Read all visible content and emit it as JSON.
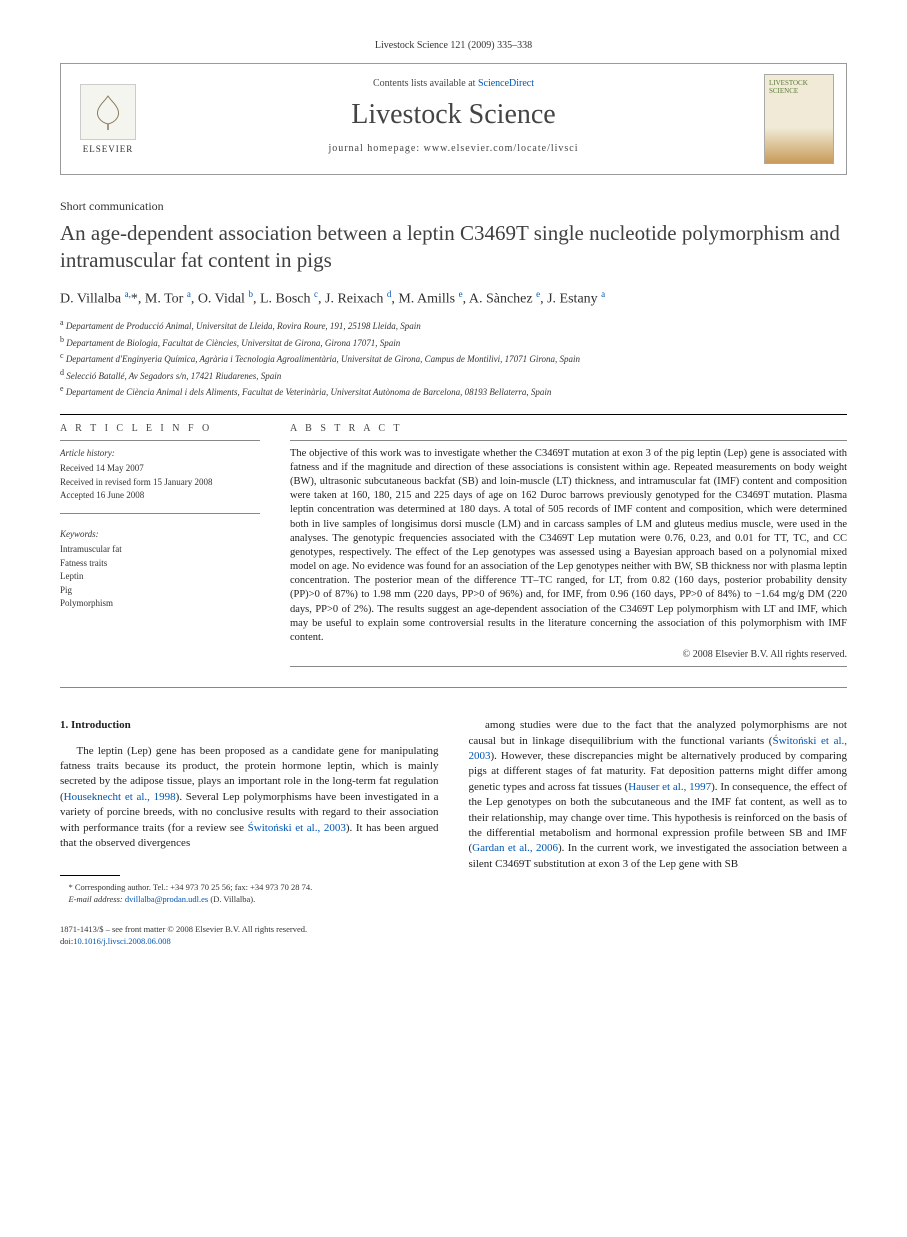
{
  "journal_ref": "Livestock Science 121 (2009) 335–338",
  "header": {
    "contents_prefix": "Contents lists available at ",
    "contents_link": "ScienceDirect",
    "journal_title": "Livestock Science",
    "homepage_prefix": "journal homepage: ",
    "homepage_url": "www.elsevier.com/locate/livsci",
    "publisher": "ELSEVIER",
    "cover_label": "LIVESTOCK SCIENCE"
  },
  "article": {
    "type": "Short communication",
    "title": "An age-dependent association between a leptin C3469T single nucleotide polymorphism and intramuscular fat content in pigs",
    "authors_html": "D. Villalba <sup>a,</sup>*, M. Tor <sup>a</sup>, O. Vidal <sup>b</sup>, L. Bosch <sup>c</sup>, J. Reixach <sup>d</sup>, M. Amills <sup>e</sup>, A. Sànchez <sup>e</sup>, J. Estany <sup>a</sup>",
    "affiliations": [
      {
        "sup": "a",
        "text": "Departament de Producció Animal, Universitat de Lleida, Rovira Roure, 191, 25198 Lleida, Spain"
      },
      {
        "sup": "b",
        "text": "Departament de Biologia, Facultat de Ciències, Universitat de Girona, Girona 17071, Spain"
      },
      {
        "sup": "c",
        "text": "Departament d'Enginyeria Química, Agrària i Tecnologia Agroalimentària, Universitat de Girona, Campus de Montilivi, 17071 Girona, Spain"
      },
      {
        "sup": "d",
        "text": "Selecció Batallé, Av Segadors s/n, 17421 Riudarenes, Spain"
      },
      {
        "sup": "e",
        "text": "Departament de Ciència Animal i dels Aliments, Facultat de Veterinària, Universitat Autònoma de Barcelona, 08193 Bellaterra, Spain"
      }
    ]
  },
  "info": {
    "label": "A R T I C L E   I N F O",
    "history_heading": "Article history:",
    "received": "Received 14 May 2007",
    "revised": "Received in revised form 15 January 2008",
    "accepted": "Accepted 16 June 2008",
    "keywords_heading": "Keywords:",
    "keywords": [
      "Intramuscular fat",
      "Fatness traits",
      "Leptin",
      "Pig",
      "Polymorphism"
    ]
  },
  "abstract": {
    "label": "A B S T R A C T",
    "text": "The objective of this work was to investigate whether the C3469T mutation at exon 3 of the pig leptin (Lep) gene is associated with fatness and if the magnitude and direction of these associations is consistent within age. Repeated measurements on body weight (BW), ultrasonic subcutaneous backfat (SB) and loin-muscle (LT) thickness, and intramuscular fat (IMF) content and composition were taken at 160, 180, 215 and 225 days of age on 162 Duroc barrows previously genotyped for the C3469T mutation. Plasma leptin concentration was determined at 180 days. A total of 505 records of IMF content and composition, which were determined both in live samples of longisimus dorsi muscle (LM) and in carcass samples of LM and gluteus medius muscle, were used in the analyses. The genotypic frequencies associated with the C3469T Lep mutation were 0.76, 0.23, and 0.01 for TT, TC, and CC genotypes, respectively. The effect of the Lep genotypes was assessed using a Bayesian approach based on a polynomial mixed model on age. No evidence was found for an association of the Lep genotypes neither with BW, SB thickness nor with plasma leptin concentration. The posterior mean of the difference TT–TC ranged, for LT, from 0.82 (160 days, posterior probability density (PP)>0 of 87%) to 1.98 mm (220 days, PP>0 of 96%) and, for IMF, from 0.96 (160 days, PP>0 of 84%) to −1.64 mg/g DM (220 days, PP>0 of 2%). The results suggest an age-dependent association of the C3469T Lep polymorphism with LT and IMF, which may be useful to explain some controversial results in the literature concerning the association of this polymorphism with IMF content.",
    "copyright": "© 2008 Elsevier B.V. All rights reserved."
  },
  "body": {
    "section_heading": "1. Introduction",
    "col1_para": "The leptin (Lep) gene has been proposed as a candidate gene for manipulating fatness traits because its product, the protein hormone leptin, which is mainly secreted by the adipose tissue, plays an important role in the long-term fat regulation (Houseknecht et al., 1998). Several Lep polymorphisms have been investigated in a variety of porcine breeds, with no conclusive results with regard to their association with performance traits (for a review see Świtoński et al., 2003). It has been argued that the observed divergences",
    "col1_link1": "Houseknecht et al., 1998",
    "col1_link2": "Świtoński et al., 2003",
    "col2_para": "among studies were due to the fact that the analyzed polymorphisms are not causal but in linkage disequilibrium with the functional variants (Świtoński et al., 2003). However, these discrepancies might be alternatively produced by comparing pigs at different stages of fat maturity. Fat deposition patterns might differ among genetic types and across fat tissues (Hauser et al., 1997). In consequence, the effect of the Lep genotypes on both the subcutaneous and the IMF fat content, as well as to their relationship, may change over time. This hypothesis is reinforced on the basis of the differential metabolism and hormonal expression profile between SB and IMF (Gardan et al., 2006). In the current work, we investigated the association between a silent C3469T substitution at exon 3 of the Lep gene with SB",
    "col2_link1": "Świtoński et al., 2003",
    "col2_link2": "Hauser et al., 1997",
    "col2_link3": "Gardan et al., 2006"
  },
  "footnote": {
    "corr_label": "* Corresponding author. Tel.: +34 973 70 25 56; fax: +34 973 70 28 74.",
    "email_label": "E-mail address: ",
    "email": "dvillalba@prodan.udl.es",
    "email_suffix": " (D. Villalba)."
  },
  "footer": {
    "issn_line": "1871-1413/$ – see front matter © 2008 Elsevier B.V. All rights reserved.",
    "doi_prefix": "doi:",
    "doi": "10.1016/j.livsci.2008.06.008"
  },
  "colors": {
    "link": "#0056b3",
    "text": "#222222",
    "border": "#999999",
    "title_gray": "#444444"
  }
}
